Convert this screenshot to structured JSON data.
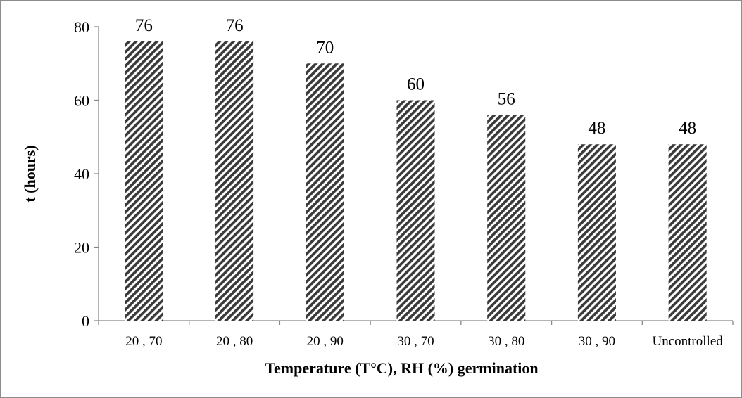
{
  "chart_data": {
    "type": "bar",
    "categories": [
      "20 , 70",
      "20 , 80",
      "20 , 90",
      "30 , 70",
      "30 , 80",
      "30 , 90",
      "Uncontrolled"
    ],
    "values": [
      76,
      76,
      70,
      60,
      56,
      48,
      48
    ],
    "data_labels": [
      "76",
      "76",
      "70",
      "60",
      "56",
      "48",
      "48"
    ],
    "xlabel": "Temperature (T°C),  RH (%) germination",
    "ylabel": "t (hours)",
    "ylim": [
      0,
      80
    ],
    "yticks": [
      0,
      20,
      40,
      60,
      80
    ],
    "grid": false,
    "legend": "none",
    "bar_fill": "diagonal-hatch",
    "colors": {
      "hatch_dark": "#3a3a3a",
      "hatch_light": "#ffffff",
      "axis": "#888888",
      "text": "#000000"
    }
  }
}
